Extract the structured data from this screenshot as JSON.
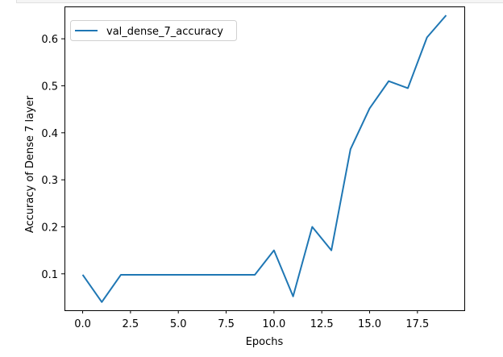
{
  "chart_data": {
    "type": "line",
    "title": "",
    "xlabel": "Epochs",
    "ylabel": "Accuracy of Dense 7 layer",
    "xlim": [
      -0.95,
      19.95
    ],
    "ylim": [
      0.0225,
      0.6688
    ],
    "xticks": [
      0.0,
      2.5,
      5.0,
      7.5,
      10.0,
      12.5,
      15.0,
      17.5
    ],
    "xtick_labels": [
      "0.0",
      "2.5",
      "5.0",
      "7.5",
      "10.0",
      "12.5",
      "15.0",
      "17.5"
    ],
    "yticks": [
      0.1,
      0.2,
      0.3,
      0.4,
      0.5,
      0.6
    ],
    "ytick_labels": [
      "0.1",
      "0.2",
      "0.3",
      "0.4",
      "0.5",
      "0.6"
    ],
    "grid": false,
    "legend_position": "upper-left",
    "series": [
      {
        "name": "val_dense_7_accuracy",
        "color": "#1f77b4",
        "x": [
          0,
          1,
          2,
          3,
          4,
          5,
          6,
          7,
          8,
          9,
          10,
          11,
          12,
          13,
          14,
          15,
          16,
          17,
          18,
          19
        ],
        "y": [
          0.098,
          0.04,
          0.098,
          0.098,
          0.098,
          0.098,
          0.098,
          0.098,
          0.098,
          0.098,
          0.15,
          0.052,
          0.2,
          0.15,
          0.365,
          0.452,
          0.51,
          0.495,
          0.603,
          0.65
        ]
      }
    ]
  }
}
